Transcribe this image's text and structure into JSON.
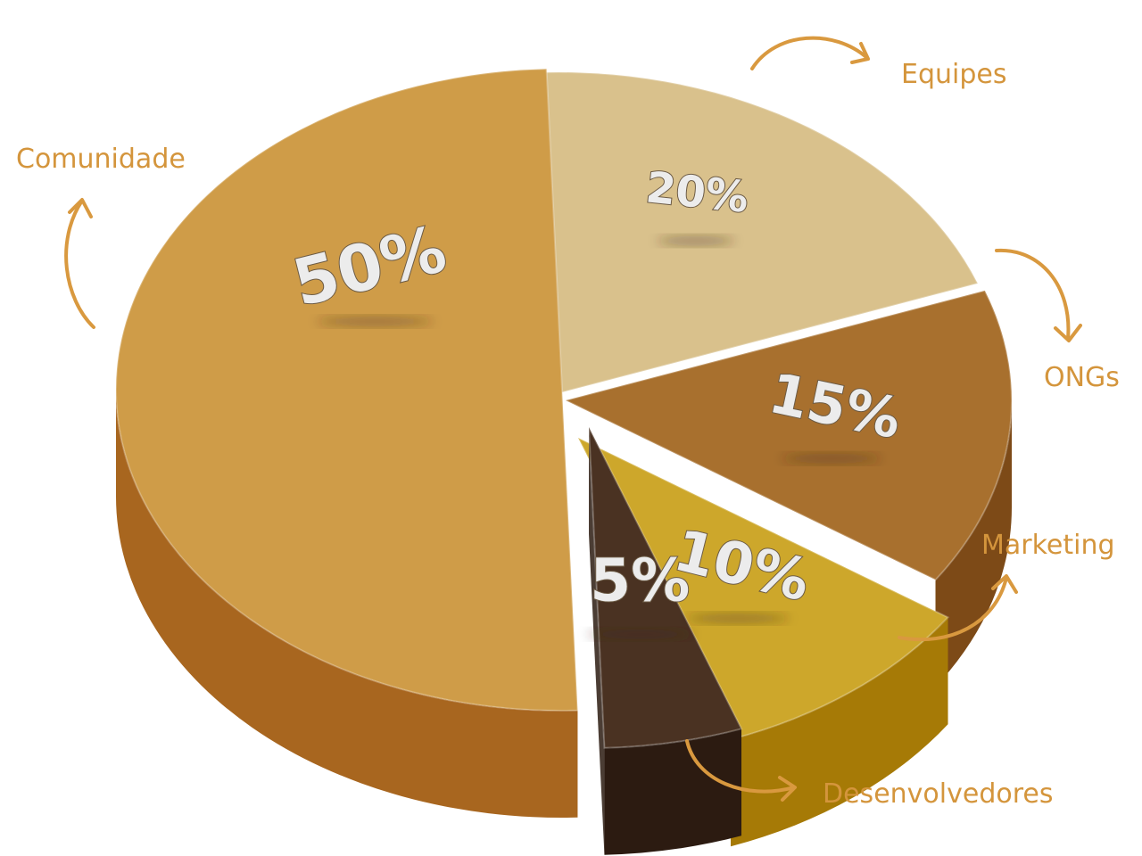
{
  "chart_data": {
    "type": "pie",
    "title": "",
    "slices": [
      {
        "label": "Comunidade",
        "value": 50,
        "value_label": "50%",
        "color": "#cf9c48",
        "side_color": "#a8661f",
        "icon": "curved-arrow-up-icon"
      },
      {
        "label": "Equipes",
        "value": 20,
        "value_label": "20%",
        "color": "#d9c18c",
        "side_color": "#b99d63",
        "icon": "curved-arrow-right-icon"
      },
      {
        "label": "ONGs",
        "value": 15,
        "value_label": "15%",
        "color": "#a8702e",
        "side_color": "#7d4a17",
        "icon": "curved-arrow-down-icon"
      },
      {
        "label": "Marketing",
        "value": 10,
        "value_label": "10%",
        "color": "#cda72b",
        "side_color": "#a67a06",
        "icon": "curved-arrow-up-right-icon"
      },
      {
        "label": "Desenvolvedores",
        "value": 5,
        "value_label": "5%",
        "color": "#4a3222",
        "side_color": "#2c1b11",
        "icon": "curved-arrow-right-icon"
      }
    ],
    "legend": "external labels with curved arrows",
    "label_color": "#d4953c",
    "percent_label_color": "#ececec"
  }
}
